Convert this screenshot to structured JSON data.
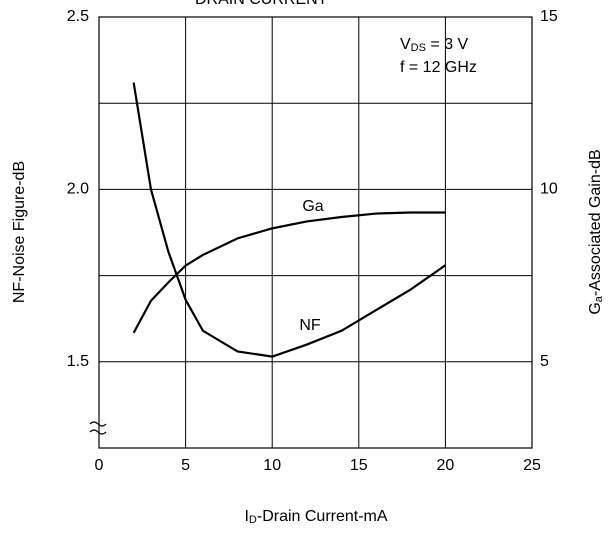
{
  "chart_data": {
    "type": "line",
    "title": "DRAIN CURRENT",
    "x_label": {
      "main": "I",
      "sub": "D",
      "rest": "-Drain Current-mA"
    },
    "y_label": "NF-Noise Figure-dB",
    "y2_label": {
      "main": "G",
      "sub": "a",
      "rest": "-Associated Gain-dB"
    },
    "annotations": [
      {
        "main": "V",
        "sub": "DS",
        "rest": " = 3 V"
      },
      {
        "main": "f = 12 GHz"
      }
    ],
    "xlim": [
      0,
      25
    ],
    "xticks": [
      0,
      5,
      10,
      15,
      20,
      25
    ],
    "ylim": [
      1.25,
      2.5
    ],
    "yticks": [
      1.5,
      {
        "value": 2,
        "label": "2.0"
      },
      2.5
    ],
    "ygrid": [
      1.75,
      2.25
    ],
    "y2lim": [
      2.5,
      15
    ],
    "y2ticks": [
      5,
      10,
      15
    ],
    "grid": true,
    "x": [
      2,
      3,
      4,
      5,
      6,
      8,
      10,
      12,
      14,
      16,
      18,
      20
    ],
    "series": [
      {
        "name": "NF",
        "color": "#000000",
        "axis": "y",
        "values": [
          2.31,
          2.0,
          1.82,
          1.68,
          1.59,
          1.53,
          1.515,
          1.55,
          1.59,
          1.65,
          1.71,
          1.78
        ]
      },
      {
        "name": "Ga",
        "color": "#000000",
        "axis": "y2",
        "values": [
          5.84,
          6.77,
          7.3,
          7.79,
          8.1,
          8.58,
          8.87,
          9.07,
          9.2,
          9.3,
          9.33,
          9.33
        ]
      }
    ]
  }
}
